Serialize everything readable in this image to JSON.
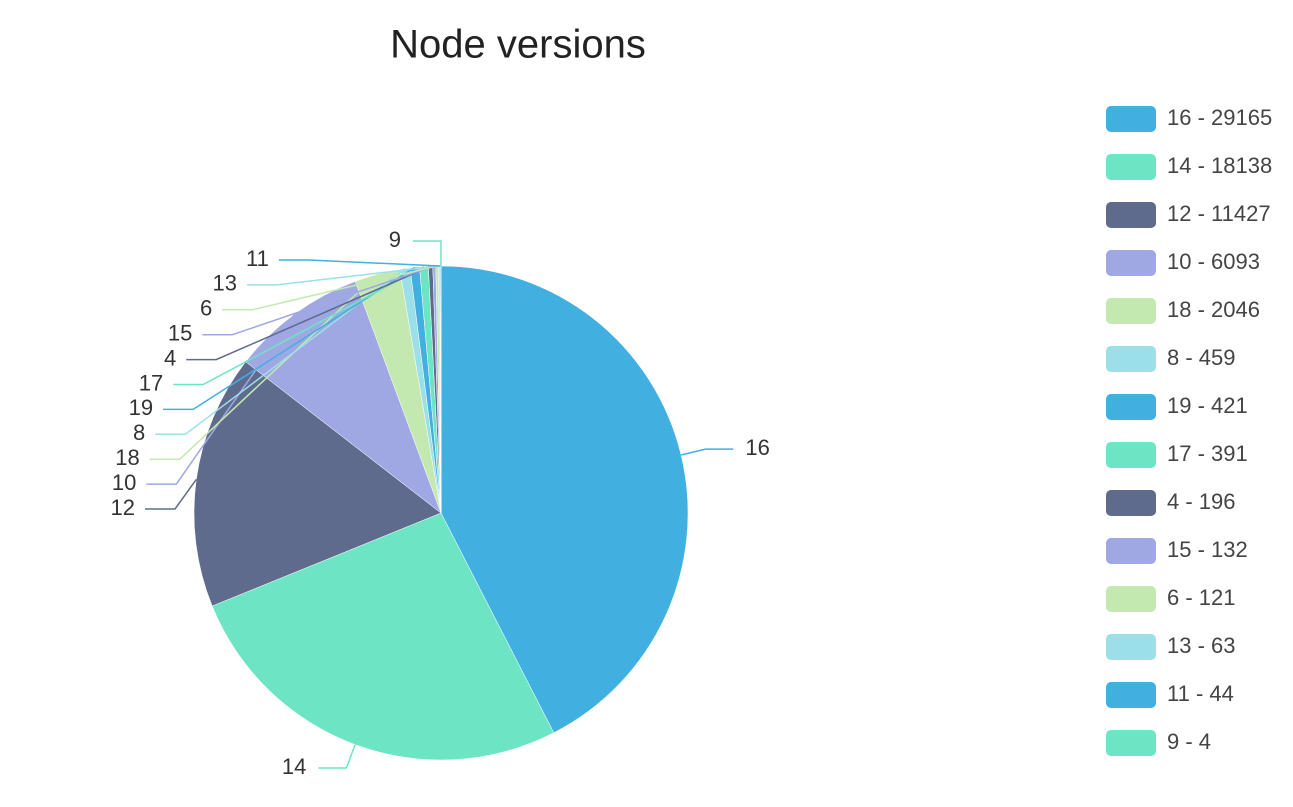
{
  "chart_data": {
    "type": "pie",
    "title": "Node versions",
    "categories": [
      "16",
      "14",
      "12",
      "10",
      "18",
      "8",
      "19",
      "17",
      "4",
      "15",
      "6",
      "13",
      "11",
      "9"
    ],
    "values": [
      29165,
      18138,
      11427,
      6093,
      2046,
      459,
      421,
      391,
      196,
      132,
      121,
      63,
      44,
      4
    ],
    "legend_labels": [
      "16 - 29165",
      "14 - 18138",
      "12 - 11427",
      "10 - 6093",
      "18 - 2046",
      "8 - 459",
      "19 - 421",
      "17 - 391",
      "4 - 196",
      "15 - 132",
      "6 - 121",
      "13 - 63",
      "11 - 44",
      "9 - 4"
    ],
    "colors": [
      "#41b0e1",
      "#6de4c3",
      "#5f6b8d",
      "#9fa8e3",
      "#c3e8b0",
      "#9be0e8",
      "#41b0e1",
      "#6de4c3",
      "#5f6b8d",
      "#9fa8e3",
      "#c3e8b0",
      "#9be0e8",
      "#41b0e1",
      "#6de4c3"
    ],
    "legend": "right"
  }
}
